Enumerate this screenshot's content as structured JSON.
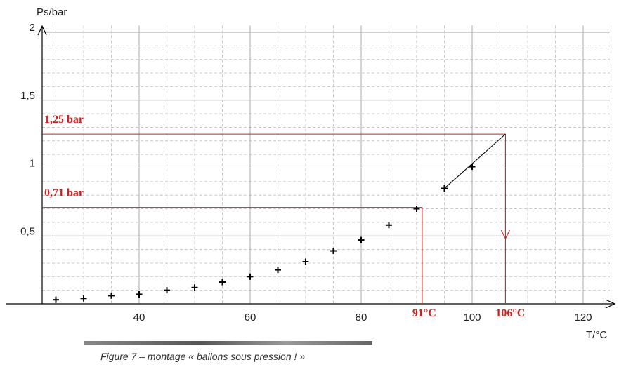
{
  "chart_data": {
    "type": "scatter",
    "xlabel": "T/°C",
    "ylabel": "Ps/bar",
    "xlim": [
      20,
      125
    ],
    "ylim": [
      0,
      2
    ],
    "x_ticks": [
      "40",
      "60",
      "80",
      "100",
      "120"
    ],
    "y_ticks": [
      "0,5",
      "1",
      "1,5",
      "2"
    ],
    "grid": true,
    "series": [
      {
        "x": [
          25,
          30,
          35,
          40,
          45,
          50,
          55,
          60,
          65,
          70,
          75,
          80,
          85,
          90,
          95,
          100
        ],
        "y": [
          0.03,
          0.04,
          0.06,
          0.07,
          0.1,
          0.12,
          0.16,
          0.2,
          0.25,
          0.31,
          0.39,
          0.47,
          0.58,
          0.7,
          0.85,
          1.01
        ]
      }
    ],
    "extrapolation_line": {
      "x": [
        95,
        106
      ],
      "y": [
        0.85,
        1.25
      ]
    },
    "annotations": [
      {
        "text": "1,25 bar",
        "y": 1.25,
        "x": 106,
        "xtext": "106°C"
      },
      {
        "text": "0,71 bar",
        "y": 0.71,
        "x": 91,
        "xtext": "91°C"
      }
    ],
    "accent_color": "#cc2222"
  },
  "caption": "Figure 7 – montage « ballons sous pression ! »"
}
